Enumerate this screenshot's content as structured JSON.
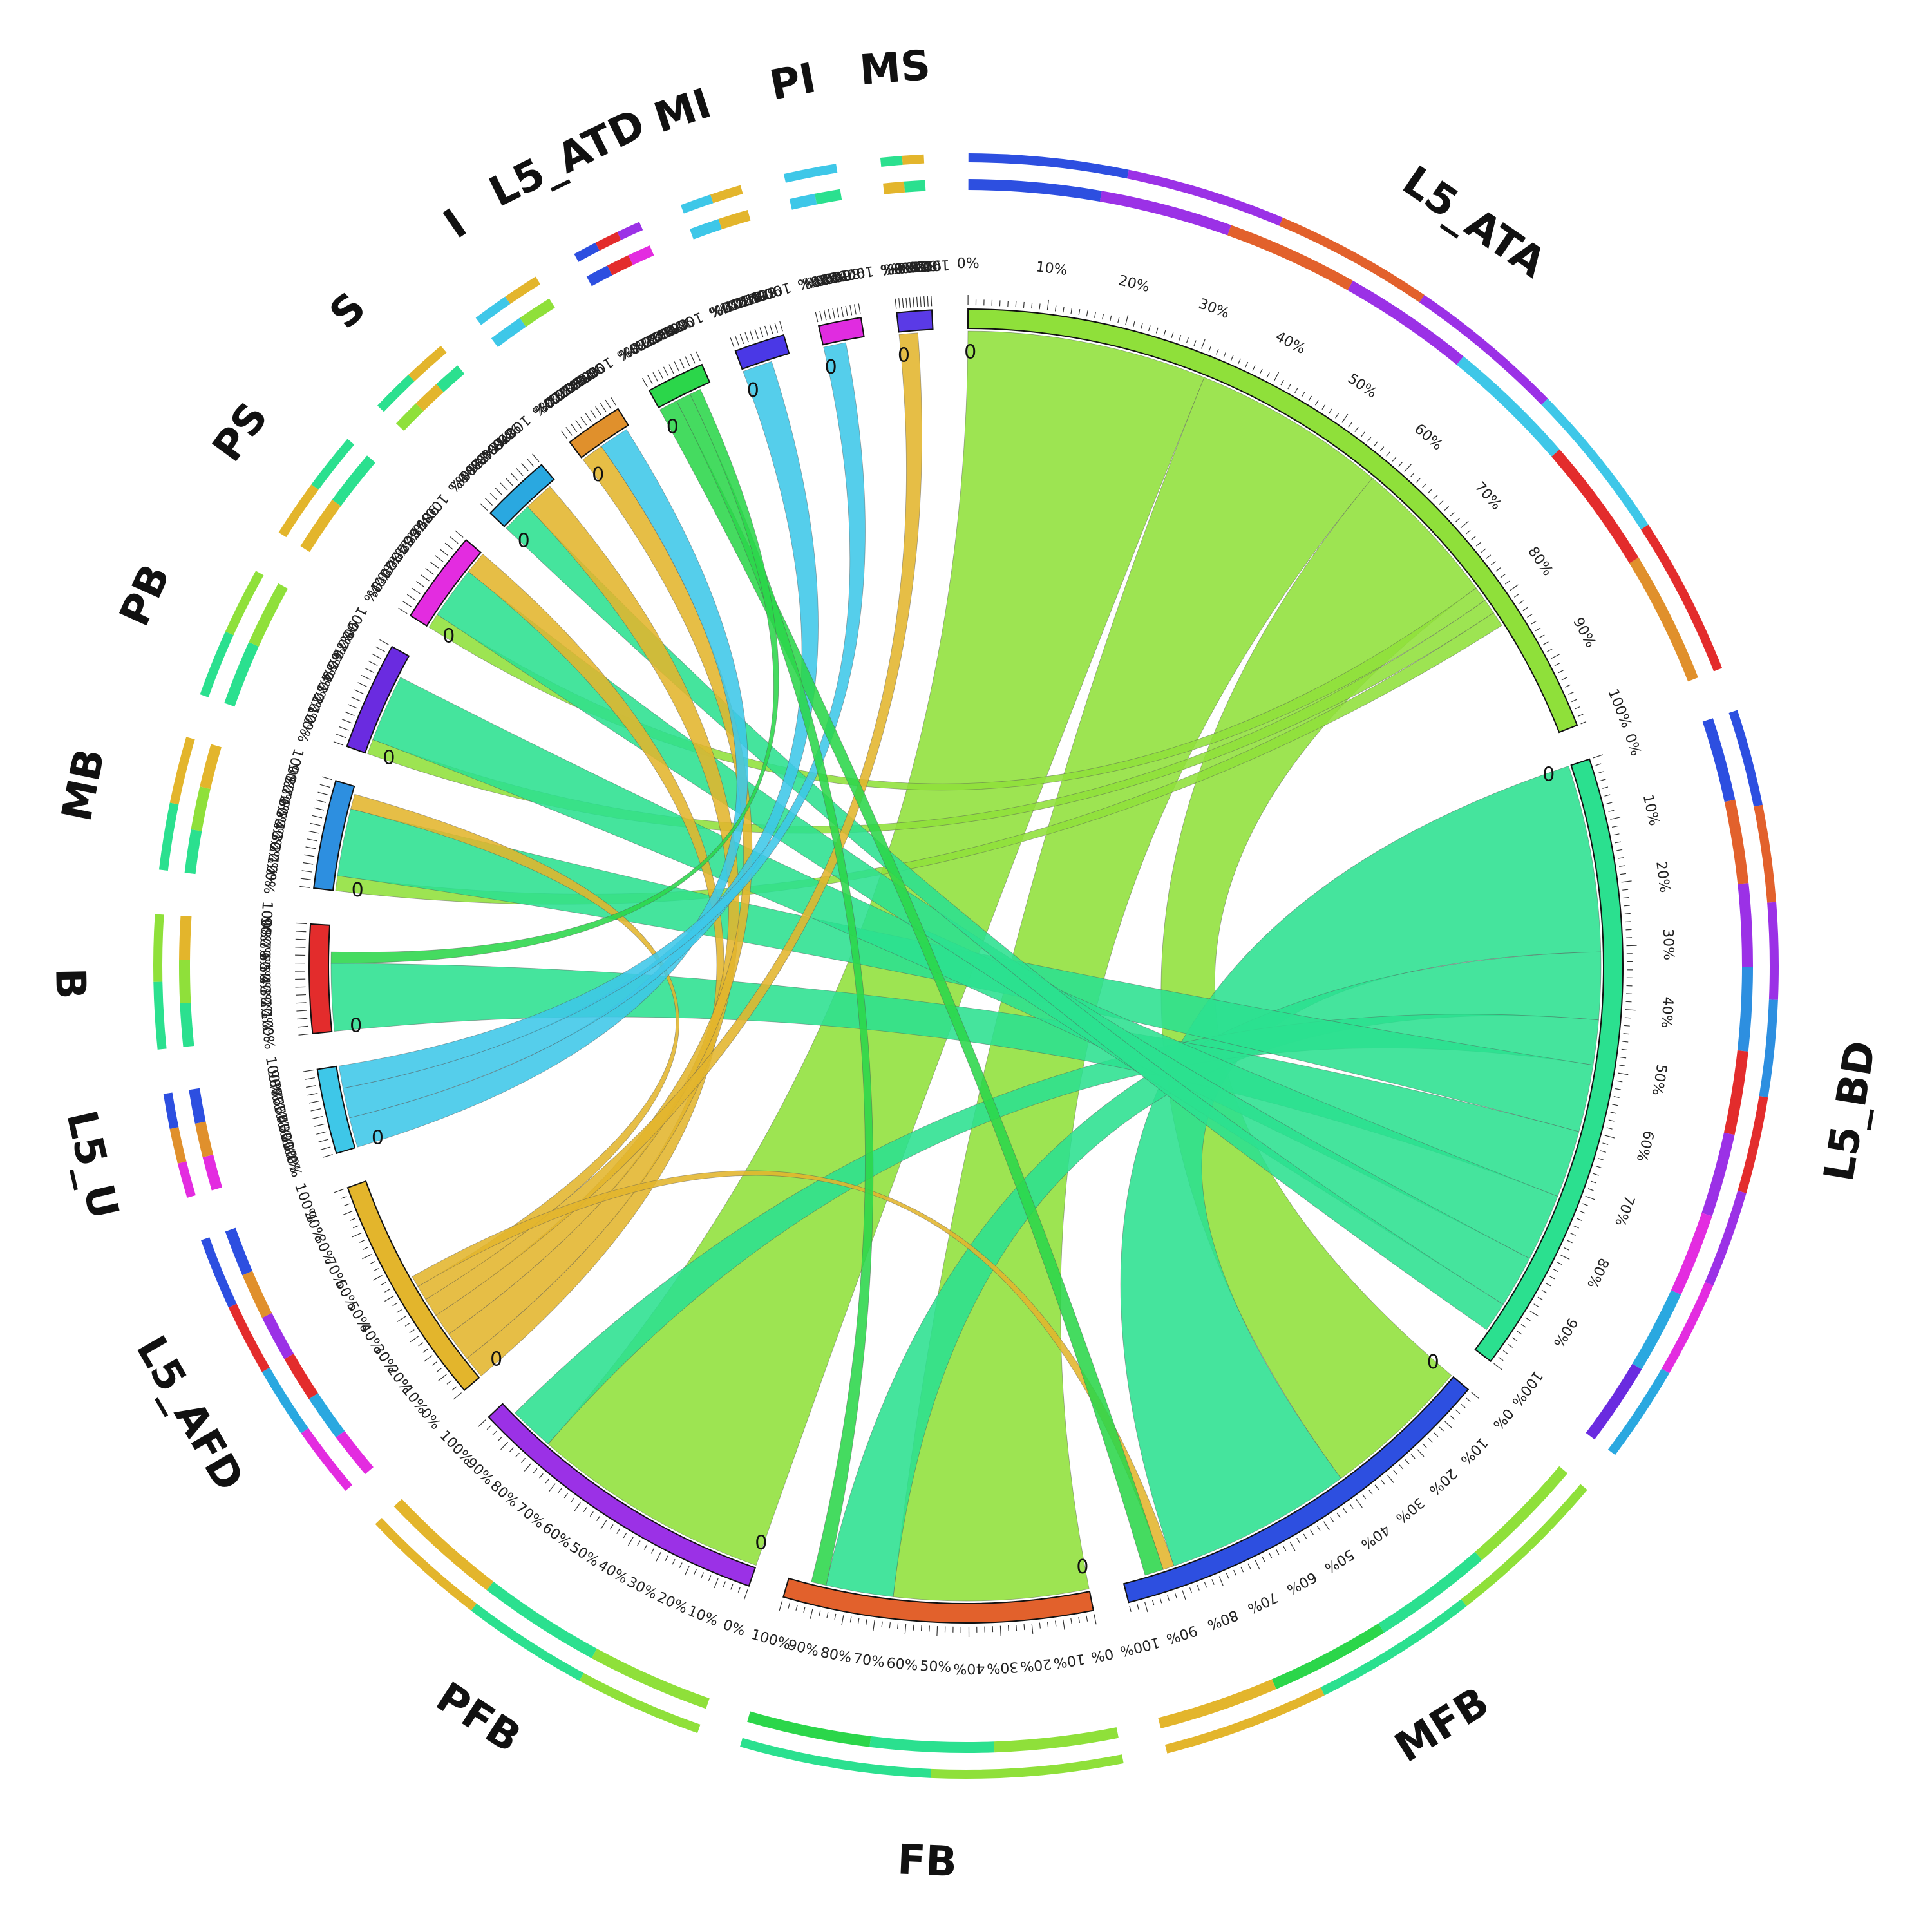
{
  "chart_data": {
    "type": "chord",
    "title": "",
    "tick_format": "percent",
    "zero_label": "0",
    "sectors": [
      {
        "name": "L5_ATA",
        "value": 1000,
        "color": "#8fe03a"
      },
      {
        "name": "L5_BD",
        "value": 810,
        "color": "#2be08f"
      },
      {
        "name": "MFB",
        "value": 520,
        "color": "#2d4fe0"
      },
      {
        "name": "FB",
        "value": 400,
        "color": "#e2612c"
      },
      {
        "name": "PFB",
        "value": 400,
        "color": "#9b31e6"
      },
      {
        "name": "L5_AFD",
        "value": 300,
        "color": "#e3b52c"
      },
      {
        "name": "L5_U",
        "value": 110,
        "color": "#3ec7e8"
      },
      {
        "name": "B",
        "value": 140,
        "color": "#e32c2c"
      },
      {
        "name": "MB",
        "value": 140,
        "color": "#2d8fe0"
      },
      {
        "name": "PB",
        "value": 140,
        "color": "#6a2be0"
      },
      {
        "name": "PS",
        "value": 120,
        "color": "#e32ce0"
      },
      {
        "name": "S",
        "value": 90,
        "color": "#2aa8e0"
      },
      {
        "name": "I",
        "value": 75,
        "color": "#e0902c"
      },
      {
        "name": "L5_ATD",
        "value": 75,
        "color": "#2bd64a"
      },
      {
        "name": "MI",
        "value": 65,
        "color": "#4a38e6"
      },
      {
        "name": "PI",
        "value": 55,
        "color": "#e02ce0"
      },
      {
        "name": "MS",
        "value": 45,
        "color": "#5a3ae6"
      }
    ],
    "links": [
      {
        "source": "L5_ATA",
        "target": "PFB",
        "value": 320,
        "color": "#8fe03a"
      },
      {
        "source": "L5_ATA",
        "target": "FB",
        "value": 260,
        "color": "#8fe03a"
      },
      {
        "source": "L5_ATA",
        "target": "MFB",
        "value": 200,
        "color": "#8fe03a"
      },
      {
        "source": "L5_ATA",
        "target": "PS",
        "value": 20,
        "color": "#8fe03a"
      },
      {
        "source": "L5_ATA",
        "target": "PB",
        "value": 20,
        "color": "#8fe03a"
      },
      {
        "source": "L5_ATA",
        "target": "MB",
        "value": 20,
        "color": "#8fe03a"
      },
      {
        "source": "L5_BD",
        "target": "MFB",
        "value": 250,
        "color": "#2be08f"
      },
      {
        "source": "L5_BD",
        "target": "FB",
        "value": 90,
        "color": "#2be08f"
      },
      {
        "source": "L5_BD",
        "target": "PFB",
        "value": 60,
        "color": "#2be08f"
      },
      {
        "source": "L5_BD",
        "target": "MB",
        "value": 90,
        "color": "#2be08f"
      },
      {
        "source": "L5_BD",
        "target": "B",
        "value": 90,
        "color": "#2be08f"
      },
      {
        "source": "L5_BD",
        "target": "PB",
        "value": 90,
        "color": "#2be08f"
      },
      {
        "source": "L5_BD",
        "target": "PS",
        "value": 70,
        "color": "#2be08f"
      },
      {
        "source": "L5_BD",
        "target": "S",
        "value": 40,
        "color": "#2be08f"
      },
      {
        "source": "L5_AFD",
        "target": "PS",
        "value": 30,
        "color": "#e3b52c"
      },
      {
        "source": "L5_AFD",
        "target": "S",
        "value": 40,
        "color": "#e3b52c"
      },
      {
        "source": "L5_AFD",
        "target": "I",
        "value": 30,
        "color": "#e3b52c"
      },
      {
        "source": "L5_AFD",
        "target": "MS",
        "value": 25,
        "color": "#e3b52c"
      },
      {
        "source": "L5_AFD",
        "target": "MB",
        "value": 20,
        "color": "#e3b52c"
      },
      {
        "source": "L5_AFD",
        "target": "MFB",
        "value": 15,
        "color": "#e3b52c"
      },
      {
        "source": "L5_U",
        "target": "I",
        "value": 40,
        "color": "#3ec7e8"
      },
      {
        "source": "L5_U",
        "target": "MI",
        "value": 40,
        "color": "#3ec7e8"
      },
      {
        "source": "L5_U",
        "target": "PI",
        "value": 30,
        "color": "#3ec7e8"
      },
      {
        "source": "L5_ATD",
        "target": "MFB",
        "value": 25,
        "color": "#2bd64a"
      },
      {
        "source": "L5_ATD",
        "target": "FB",
        "value": 20,
        "color": "#2bd64a"
      },
      {
        "source": "L5_ATD",
        "target": "B",
        "value": 15,
        "color": "#2bd64a"
      }
    ],
    "outer_tracks": [
      {
        "sector": "L5_ATA",
        "inner": [
          "#2d4fe0",
          "#9b31e6",
          "#e2612c",
          "#9b31e6",
          "#3ec7e8",
          "#e32c2c",
          "#e0902c"
        ],
        "outer": [
          "#2d4fe0",
          "#9b31e6",
          "#e2612c",
          "#9b31e6",
          "#3ec7e8",
          "#e32c2c"
        ]
      },
      {
        "sector": "L5_BD",
        "inner": [
          "#2d4fe0",
          "#e2612c",
          "#9b31e6",
          "#2d8fe0",
          "#e32c2c",
          "#9b31e6",
          "#e32ce0",
          "#2aa8e0",
          "#6a2be0"
        ],
        "outer": [
          "#2d4fe0",
          "#e2612c",
          "#9b31e6",
          "#2d8fe0",
          "#e32c2c",
          "#9b31e6",
          "#e32ce0",
          "#2aa8e0"
        ]
      },
      {
        "sector": "MFB",
        "inner": [
          "#8fe03a",
          "#2be08f",
          "#2bd64a",
          "#e3b52c"
        ],
        "outer": [
          "#8fe03a",
          "#2be08f",
          "#e3b52c"
        ]
      },
      {
        "sector": "FB",
        "inner": [
          "#8fe03a",
          "#2be08f",
          "#2bd64a"
        ],
        "outer": [
          "#8fe03a",
          "#2be08f"
        ]
      },
      {
        "sector": "PFB",
        "inner": [
          "#8fe03a",
          "#2be08f",
          "#e3b52c"
        ],
        "outer": [
          "#8fe03a",
          "#2be08f",
          "#e3b52c"
        ]
      },
      {
        "sector": "L5_AFD",
        "inner": [
          "#e32ce0",
          "#2aa8e0",
          "#e32c2c",
          "#9b31e6",
          "#e0902c",
          "#2d4fe0"
        ],
        "outer": [
          "#e32ce0",
          "#2aa8e0",
          "#e32c2c",
          "#2d4fe0"
        ]
      },
      {
        "sector": "L5_U",
        "inner": [
          "#e32ce0",
          "#e0902c",
          "#2d4fe0"
        ],
        "outer": [
          "#e32ce0",
          "#e0902c",
          "#2d4fe0"
        ]
      },
      {
        "sector": "B",
        "inner": [
          "#2be08f",
          "#8fe03a",
          "#e3b52c"
        ],
        "outer": [
          "#2be08f",
          "#8fe03a"
        ]
      },
      {
        "sector": "MB",
        "inner": [
          "#2be08f",
          "#8fe03a",
          "#e3b52c"
        ],
        "outer": [
          "#2be08f",
          "#e3b52c"
        ]
      },
      {
        "sector": "PB",
        "inner": [
          "#2be08f",
          "#8fe03a"
        ],
        "outer": [
          "#2be08f",
          "#8fe03a"
        ]
      },
      {
        "sector": "PS",
        "inner": [
          "#e3b52c",
          "#2be08f"
        ],
        "outer": [
          "#e3b52c",
          "#2be08f"
        ]
      },
      {
        "sector": "S",
        "inner": [
          "#8fe03a",
          "#e3b52c",
          "#2be08f"
        ],
        "outer": [
          "#2be08f",
          "#e3b52c"
        ]
      },
      {
        "sector": "I",
        "inner": [
          "#3ec7e8",
          "#8fe03a"
        ],
        "outer": [
          "#3ec7e8",
          "#e3b52c"
        ]
      },
      {
        "sector": "L5_ATD",
        "inner": [
          "#2d4fe0",
          "#e32c2c",
          "#e32ce0"
        ],
        "outer": [
          "#2d4fe0",
          "#e32c2c",
          "#9b31e6"
        ]
      },
      {
        "sector": "MI",
        "inner": [
          "#3ec7e8",
          "#e3b52c"
        ],
        "outer": [
          "#3ec7e8",
          "#e3b52c"
        ]
      },
      {
        "sector": "PI",
        "inner": [
          "#3ec7e8",
          "#2be08f"
        ],
        "outer": [
          "#3ec7e8"
        ]
      },
      {
        "sector": "MS",
        "inner": [
          "#e3b52c",
          "#2be08f"
        ],
        "outer": [
          "#2be08f",
          "#e3b52c"
        ]
      }
    ]
  }
}
